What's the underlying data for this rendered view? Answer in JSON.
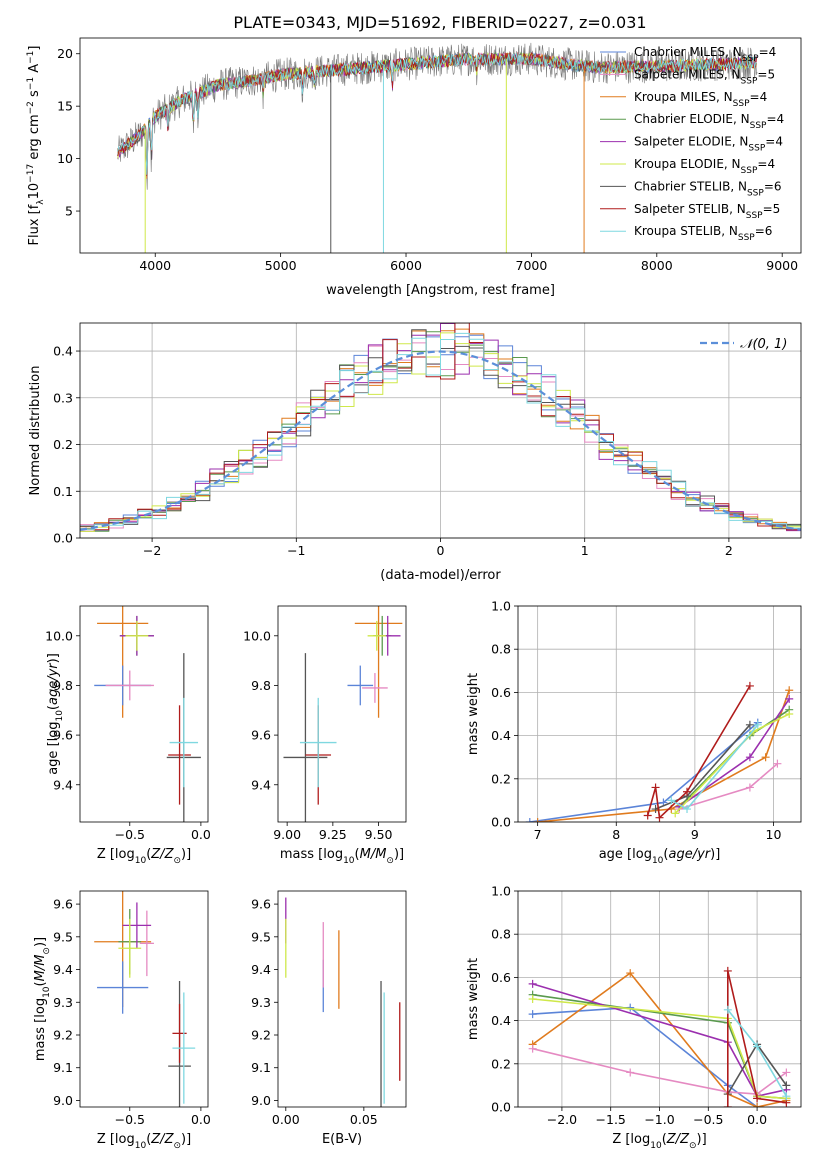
{
  "figure": {
    "title": "PLATE=0343, MJD=51692, FIBERID=0227, z=0.031"
  },
  "colors": {
    "Chabrier MILES": "#5b84d8",
    "Salpeter MILES": "#e58ac2",
    "Kroupa MILES": "#e07b1e",
    "Chabrier ELODIE": "#5a9a4e",
    "Salpeter ELODIE": "#9b2fae",
    "Kroupa ELODIE": "#cfe84a",
    "Chabrier STELIB": "#555555",
    "Salpeter STELIB": "#b01c1c",
    "Kroupa STELIB": "#7fd8e0"
  },
  "chart_data": [
    {
      "id": "spectrum",
      "type": "line",
      "xlabel": "wavelength [Angstrom, rest frame]",
      "ylabel_parts": [
        "Flux [f",
        "λ",
        "10",
        "−17",
        " erg cm",
        "−2",
        " s",
        "−1",
        " A",
        "−1",
        "]"
      ],
      "xlim": [
        3400,
        9150
      ],
      "ylim": [
        1,
        21.5
      ],
      "xticks": [
        4000,
        5000,
        6000,
        7000,
        8000,
        9000
      ],
      "yticks": [
        5,
        10,
        15,
        20
      ],
      "grid": false,
      "legend_position": "upper right",
      "legend": [
        {
          "model": "Chabrier MILES",
          "label": "Chabrier MILES, N",
          "sub": "SSP",
          "suffix": "=4"
        },
        {
          "model": "Salpeter MILES",
          "label": "Salpeter MILES, N",
          "sub": "SSP",
          "suffix": "=5"
        },
        {
          "model": "Kroupa MILES",
          "label": "Kroupa MILES, N",
          "sub": "SSP",
          "suffix": "=4"
        },
        {
          "model": "Chabrier ELODIE",
          "label": "Chabrier ELODIE, N",
          "sub": "SSP",
          "suffix": "=4"
        },
        {
          "model": "Salpeter ELODIE",
          "label": "Salpeter ELODIE, N",
          "sub": "SSP",
          "suffix": "=4"
        },
        {
          "model": "Kroupa ELODIE",
          "label": "Kroupa ELODIE, N",
          "sub": "SSP",
          "suffix": "=4"
        },
        {
          "model": "Chabrier STELIB",
          "label": "Chabrier STELIB, N",
          "sub": "SSP",
          "suffix": "=6"
        },
        {
          "model": "Salpeter STELIB",
          "label": "Salpeter STELIB, N",
          "sub": "SSP",
          "suffix": "=5"
        },
        {
          "model": "Kroupa STELIB",
          "label": "Kroupa STELIB, N",
          "sub": "SSP",
          "suffix": "=6"
        }
      ],
      "continuum": [
        [
          3700,
          10.5
        ],
        [
          3800,
          11.5
        ],
        [
          3900,
          12.5
        ],
        [
          4000,
          14.0
        ],
        [
          4200,
          15.5
        ],
        [
          4500,
          17.0
        ],
        [
          4800,
          17.5
        ],
        [
          5000,
          18.0
        ],
        [
          5500,
          18.5
        ],
        [
          6000,
          19.0
        ],
        [
          6500,
          19.5
        ],
        [
          7000,
          19.5
        ],
        [
          7300,
          19.0
        ],
        [
          7500,
          18.7
        ],
        [
          8000,
          18.8
        ],
        [
          8500,
          19.0
        ],
        [
          8800,
          19.2
        ]
      ],
      "absorption_features": [
        [
          3934,
          -5
        ],
        [
          3969,
          -4
        ],
        [
          4102,
          -2
        ],
        [
          4304,
          -3
        ],
        [
          4340,
          -2
        ],
        [
          4861,
          -1.5
        ],
        [
          5175,
          -2
        ],
        [
          5270,
          -1
        ],
        [
          5890,
          -2
        ],
        [
          6563,
          -1
        ]
      ],
      "gaps": [
        {
          "model": "Chabrier STELIB",
          "x": 5400,
          "ymin": 1
        },
        {
          "model": "Kroupa STELIB",
          "x": 5820,
          "ymin": 1
        },
        {
          "model": "Kroupa ELODIE",
          "x": 6800,
          "ymin": 1
        },
        {
          "model": "Kroupa MILES",
          "x": 7420,
          "ymin": 1
        },
        {
          "model": "Kroupa ELODIE",
          "x": 3920,
          "ymin": 1
        }
      ]
    },
    {
      "id": "residuals",
      "type": "step",
      "xlabel": "(data-model)/error",
      "ylabel": "Normed distribution",
      "xlim": [
        -2.5,
        2.5
      ],
      "ylim": [
        0,
        0.46
      ],
      "xticks": [
        -2,
        -1,
        0,
        1,
        2
      ],
      "yticks": [
        0.0,
        0.1,
        0.2,
        0.3,
        0.4
      ],
      "grid": true,
      "legend_position": "upper right",
      "gauss_label": "𝒩(0, 1)",
      "gauss_color": "#5b8fd9",
      "bin_width": 0.1
    },
    {
      "id": "age-vs-Z",
      "type": "errorbar",
      "xlabel": "Z [log10(Z/Z⊙)]",
      "ylabel": "age  [log10(age/yr)]",
      "xlim": [
        -0.85,
        0.05
      ],
      "ylim": [
        9.25,
        10.12
      ],
      "xticks": [
        -0.5,
        0.0
      ],
      "yticks": [
        9.4,
        9.6,
        9.8,
        10.0
      ],
      "points": [
        {
          "model": "Kroupa MILES",
          "x": -0.55,
          "y": 10.05,
          "xerr": 0.18,
          "yerr": 0.38
        },
        {
          "model": "Chabrier MILES",
          "x": -0.55,
          "y": 9.8,
          "xerr": 0.2,
          "yerr": 0.08
        },
        {
          "model": "Salpeter MILES",
          "x": -0.5,
          "y": 9.8,
          "xerr": 0.17,
          "yerr": 0.06
        },
        {
          "model": "Chabrier ELODIE",
          "x": -0.45,
          "y": 10.0,
          "xerr": 0.12,
          "yerr": 0.08
        },
        {
          "model": "Salpeter ELODIE",
          "x": -0.45,
          "y": 10.0,
          "xerr": 0.12,
          "yerr": 0.08
        },
        {
          "model": "Kroupa ELODIE",
          "x": -0.45,
          "y": 10.0,
          "xerr": 0.08,
          "yerr": 0.06
        },
        {
          "model": "Chabrier STELIB",
          "x": -0.12,
          "y": 9.51,
          "xerr": 0.12,
          "yerr": 0.42
        },
        {
          "model": "Salpeter STELIB",
          "x": -0.15,
          "y": 9.52,
          "xerr": 0.08,
          "yerr": 0.2
        },
        {
          "model": "Kroupa STELIB",
          "x": -0.12,
          "y": 9.57,
          "xerr": 0.1,
          "yerr": 0.18
        }
      ]
    },
    {
      "id": "age-vs-mass",
      "type": "errorbar",
      "xlabel": "mass [log10(M/M⊙)]",
      "xlim": [
        8.95,
        9.65
      ],
      "ylim": [
        9.25,
        10.12
      ],
      "xticks": [
        9.0,
        9.25,
        9.5
      ],
      "yticks": [
        9.4,
        9.6,
        9.8,
        10.0
      ],
      "points": [
        {
          "model": "Kroupa MILES",
          "x": 9.5,
          "y": 10.05,
          "xerr": 0.13,
          "yerr": 0.38
        },
        {
          "model": "Chabrier MILES",
          "x": 9.4,
          "y": 9.8,
          "xerr": 0.07,
          "yerr": 0.08
        },
        {
          "model": "Salpeter MILES",
          "x": 9.48,
          "y": 9.79,
          "xerr": 0.07,
          "yerr": 0.06
        },
        {
          "model": "Chabrier ELODIE",
          "x": 9.52,
          "y": 10.0,
          "xerr": 0.05,
          "yerr": 0.08
        },
        {
          "model": "Salpeter ELODIE",
          "x": 9.55,
          "y": 10.0,
          "xerr": 0.07,
          "yerr": 0.08
        },
        {
          "model": "Kroupa ELODIE",
          "x": 9.49,
          "y": 10.0,
          "xerr": 0.05,
          "yerr": 0.06
        },
        {
          "model": "Chabrier STELIB",
          "x": 9.1,
          "y": 9.51,
          "xerr": 0.12,
          "yerr": 0.42
        },
        {
          "model": "Salpeter STELIB",
          "x": 9.17,
          "y": 9.52,
          "xerr": 0.07,
          "yerr": 0.2
        },
        {
          "model": "Kroupa STELIB",
          "x": 9.17,
          "y": 9.57,
          "xerr": 0.1,
          "yerr": 0.18
        }
      ]
    },
    {
      "id": "massweight-vs-age",
      "type": "line",
      "xlabel": "age  [log10(age/yr)]",
      "ylabel": "mass weight",
      "xlim": [
        6.75,
        10.35
      ],
      "ylim": [
        0,
        1.0
      ],
      "xticks": [
        7,
        8,
        9,
        10
      ],
      "yticks": [
        0.0,
        0.2,
        0.4,
        0.6,
        0.8,
        1.0
      ],
      "grid": true,
      "series": [
        {
          "model": "Chabrier MILES",
          "x": [
            6.9,
            8.6,
            9.8
          ],
          "y": [
            0.0,
            0.09,
            0.46
          ]
        },
        {
          "model": "Kroupa MILES",
          "x": [
            7.0,
            8.7,
            9.9,
            10.2
          ],
          "y": [
            0.0,
            0.06,
            0.3,
            0.61
          ]
        },
        {
          "model": "Salpeter MILES",
          "x": [
            8.8,
            9.7,
            10.05
          ],
          "y": [
            0.06,
            0.16,
            0.27
          ]
        },
        {
          "model": "Chabrier ELODIE",
          "x": [
            8.8,
            9.7,
            10.2
          ],
          "y": [
            0.07,
            0.4,
            0.52
          ]
        },
        {
          "model": "Salpeter ELODIE",
          "x": [
            8.8,
            9.7,
            10.2
          ],
          "y": [
            0.07,
            0.3,
            0.57
          ]
        },
        {
          "model": "Kroupa ELODIE",
          "x": [
            8.75,
            9.75,
            10.2
          ],
          "y": [
            0.04,
            0.42,
            0.5
          ]
        },
        {
          "model": "Chabrier STELIB",
          "x": [
            8.5,
            8.9,
            9.7
          ],
          "y": [
            0.06,
            0.12,
            0.45
          ]
        },
        {
          "model": "Salpeter STELIB",
          "x": [
            8.4,
            8.5,
            8.55,
            8.9,
            9.7
          ],
          "y": [
            0.03,
            0.16,
            0.02,
            0.14,
            0.63
          ]
        },
        {
          "model": "Kroupa STELIB",
          "x": [
            8.7,
            8.9,
            9.8
          ],
          "y": [
            0.1,
            0.06,
            0.45
          ]
        }
      ]
    },
    {
      "id": "mass-vs-Z",
      "type": "errorbar",
      "xlabel": "Z [log10(Z/Z⊙)]",
      "ylabel": "mass [log10(M/M⊙)]",
      "xlim": [
        -0.85,
        0.05
      ],
      "ylim": [
        8.98,
        9.64
      ],
      "xticks": [
        -0.5,
        0.0
      ],
      "yticks": [
        9.0,
        9.1,
        9.2,
        9.3,
        9.4,
        9.5,
        9.6
      ],
      "points": [
        {
          "model": "Kroupa MILES",
          "x": -0.55,
          "y": 9.485,
          "xerr": 0.2,
          "yerr": 0.2
        },
        {
          "model": "Chabrier MILES",
          "x": -0.55,
          "y": 9.345,
          "xerr": 0.18,
          "yerr": 0.08
        },
        {
          "model": "Salpeter MILES",
          "x": -0.38,
          "y": 9.48,
          "xerr": 0.05,
          "yerr": 0.1
        },
        {
          "model": "Chabrier ELODIE",
          "x": -0.5,
          "y": 9.485,
          "xerr": 0.08,
          "yerr": 0.1
        },
        {
          "model": "Salpeter ELODIE",
          "x": -0.45,
          "y": 9.535,
          "xerr": 0.1,
          "yerr": 0.07
        },
        {
          "model": "Kroupa ELODIE",
          "x": -0.5,
          "y": 9.465,
          "xerr": 0.08,
          "yerr": 0.09
        },
        {
          "model": "Chabrier STELIB",
          "x": -0.15,
          "y": 9.105,
          "xerr": 0.08,
          "yerr": 0.26
        },
        {
          "model": "Salpeter STELIB",
          "x": -0.15,
          "y": 9.205,
          "xerr": 0.05,
          "yerr": 0.09
        },
        {
          "model": "Kroupa STELIB",
          "x": -0.12,
          "y": 9.16,
          "xerr": 0.08,
          "yerr": 0.17
        }
      ]
    },
    {
      "id": "mass-vs-EBV",
      "type": "errorbar",
      "xlabel": "E(B-V)",
      "xlim": [
        -0.005,
        0.077
      ],
      "ylim": [
        8.98,
        9.64
      ],
      "xticks": [
        0.0,
        0.05
      ],
      "yticks": [
        9.0,
        9.1,
        9.2,
        9.3,
        9.4,
        9.5,
        9.6
      ],
      "points": [
        {
          "model": "Salpeter ELODIE",
          "x": 0.0,
          "y": 9.55,
          "xerr": 0,
          "yerr": 0.07
        },
        {
          "model": "Kroupa ELODIE",
          "x": 0.0,
          "y": 9.465,
          "xerr": 0,
          "yerr": 0.09
        },
        {
          "model": "Chabrier MILES",
          "x": 0.024,
          "y": 9.35,
          "xerr": 0,
          "yerr": 0.08
        },
        {
          "model": "Salpeter MILES",
          "x": 0.024,
          "y": 9.445,
          "xerr": 0,
          "yerr": 0.1
        },
        {
          "model": "Kroupa MILES",
          "x": 0.034,
          "y": 9.4,
          "xerr": 0,
          "yerr": 0.12
        },
        {
          "model": "Chabrier STELIB",
          "x": 0.061,
          "y": 9.105,
          "xerr": 0,
          "yerr": 0.26
        },
        {
          "model": "Kroupa STELIB",
          "x": 0.063,
          "y": 9.16,
          "xerr": 0,
          "yerr": 0.17
        },
        {
          "model": "Salpeter STELIB",
          "x": 0.073,
          "y": 9.18,
          "xerr": 0,
          "yerr": 0.12
        }
      ]
    },
    {
      "id": "massweight-vs-Z",
      "type": "line",
      "xlabel": "Z [log10(Z/Z⊙)]",
      "ylabel": "mass weight",
      "xlim": [
        -2.45,
        0.45
      ],
      "ylim": [
        0,
        1.0
      ],
      "xticks": [
        -2.0,
        -1.5,
        -1.0,
        -0.5,
        0.0
      ],
      "yticks": [
        0.0,
        0.2,
        0.4,
        0.6,
        0.8,
        1.0
      ],
      "grid": true,
      "series": [
        {
          "model": "Chabrier MILES",
          "x": [
            -2.3,
            -1.3,
            -0.3,
            0.0
          ],
          "y": [
            0.43,
            0.46,
            0.1,
            0.0
          ]
        },
        {
          "model": "Kroupa MILES",
          "x": [
            -2.3,
            -1.3,
            -0.3,
            0.0,
            0.3
          ],
          "y": [
            0.29,
            0.62,
            0.06,
            0.0,
            0.03
          ]
        },
        {
          "model": "Salpeter MILES",
          "x": [
            -2.3,
            -1.3,
            -0.3,
            0.0,
            0.3
          ],
          "y": [
            0.27,
            0.16,
            0.07,
            0.06,
            0.16
          ]
        },
        {
          "model": "Chabrier ELODIE",
          "x": [
            -2.3,
            -0.3,
            0.0,
            0.3
          ],
          "y": [
            0.52,
            0.39,
            0.05,
            0.04
          ]
        },
        {
          "model": "Salpeter ELODIE",
          "x": [
            -2.3,
            -0.3,
            0.0,
            0.3
          ],
          "y": [
            0.57,
            0.3,
            0.05,
            0.08
          ]
        },
        {
          "model": "Kroupa ELODIE",
          "x": [
            -2.3,
            -0.3,
            0.0,
            0.3
          ],
          "y": [
            0.5,
            0.41,
            0.05,
            0.04
          ]
        },
        {
          "model": "Chabrier STELIB",
          "x": [
            -0.3,
            0.0,
            0.3
          ],
          "y": [
            0.06,
            0.29,
            0.1
          ]
        },
        {
          "model": "Salpeter STELIB",
          "x": [
            -0.3,
            -0.3,
            0.0,
            0.3
          ],
          "y": [
            0.0,
            0.63,
            0.04,
            0.02
          ]
        },
        {
          "model": "Kroupa STELIB",
          "x": [
            -0.3,
            0.0,
            0.3
          ],
          "y": [
            0.45,
            0.28,
            0.05
          ]
        }
      ]
    }
  ]
}
